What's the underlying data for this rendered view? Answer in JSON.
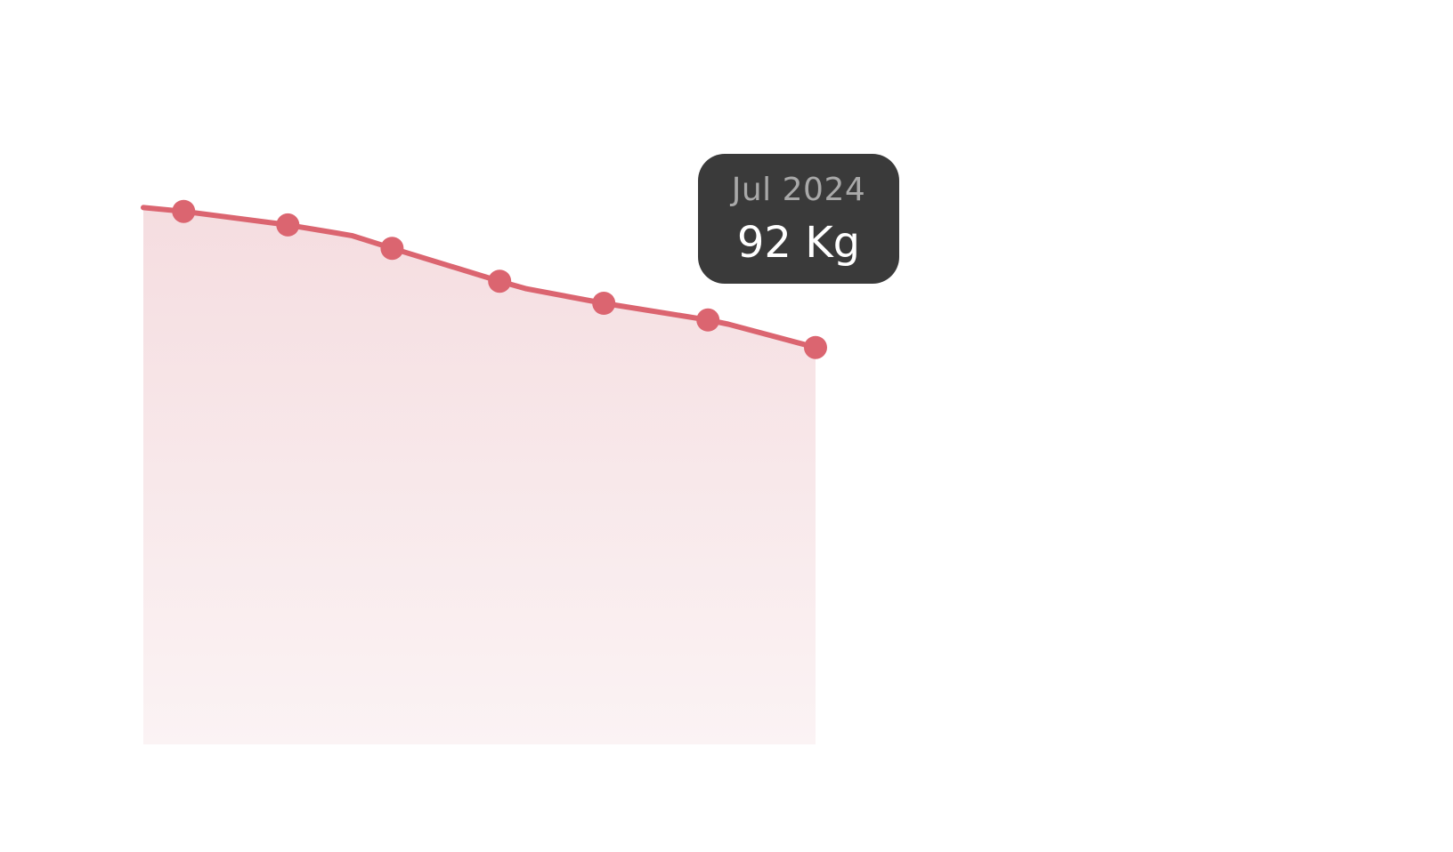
{
  "colors": {
    "line": "#db6570",
    "area_top": "#f5dde0",
    "area_bottom": "#fbf3f4",
    "tooltip_bg": "#3a3a3a",
    "tooltip_date": "#a9a9a9",
    "tooltip_value": "#ffffff"
  },
  "tooltip": {
    "date": "Jul 2024",
    "value": "92 Kg"
  },
  "chart_data": {
    "type": "area",
    "title": "",
    "xlabel": "",
    "ylabel": "",
    "grid": false,
    "legend": "none",
    "unit": "Kg",
    "ylim": [
      60,
      100
    ],
    "series": [
      {
        "points": [
          {
            "x": 0.0,
            "y": 99.26,
            "marker": false
          },
          {
            "x": 0.06,
            "y": 98.98,
            "marker": true
          },
          {
            "x": 0.215,
            "y": 97.99,
            "marker": true
          },
          {
            "x": 0.31,
            "y": 97.21,
            "marker": false
          },
          {
            "x": 0.37,
            "y": 96.28,
            "marker": true
          },
          {
            "x": 0.53,
            "y": 93.87,
            "marker": true
          },
          {
            "x": 0.57,
            "y": 93.32,
            "marker": false
          },
          {
            "x": 0.685,
            "y": 92.26,
            "marker": true
          },
          {
            "x": 0.84,
            "y": 91.04,
            "marker": true
          },
          {
            "x": 0.87,
            "y": 90.73,
            "marker": false
          },
          {
            "x": 1.0,
            "y": 89.03,
            "marker": true
          }
        ]
      }
    ]
  }
}
